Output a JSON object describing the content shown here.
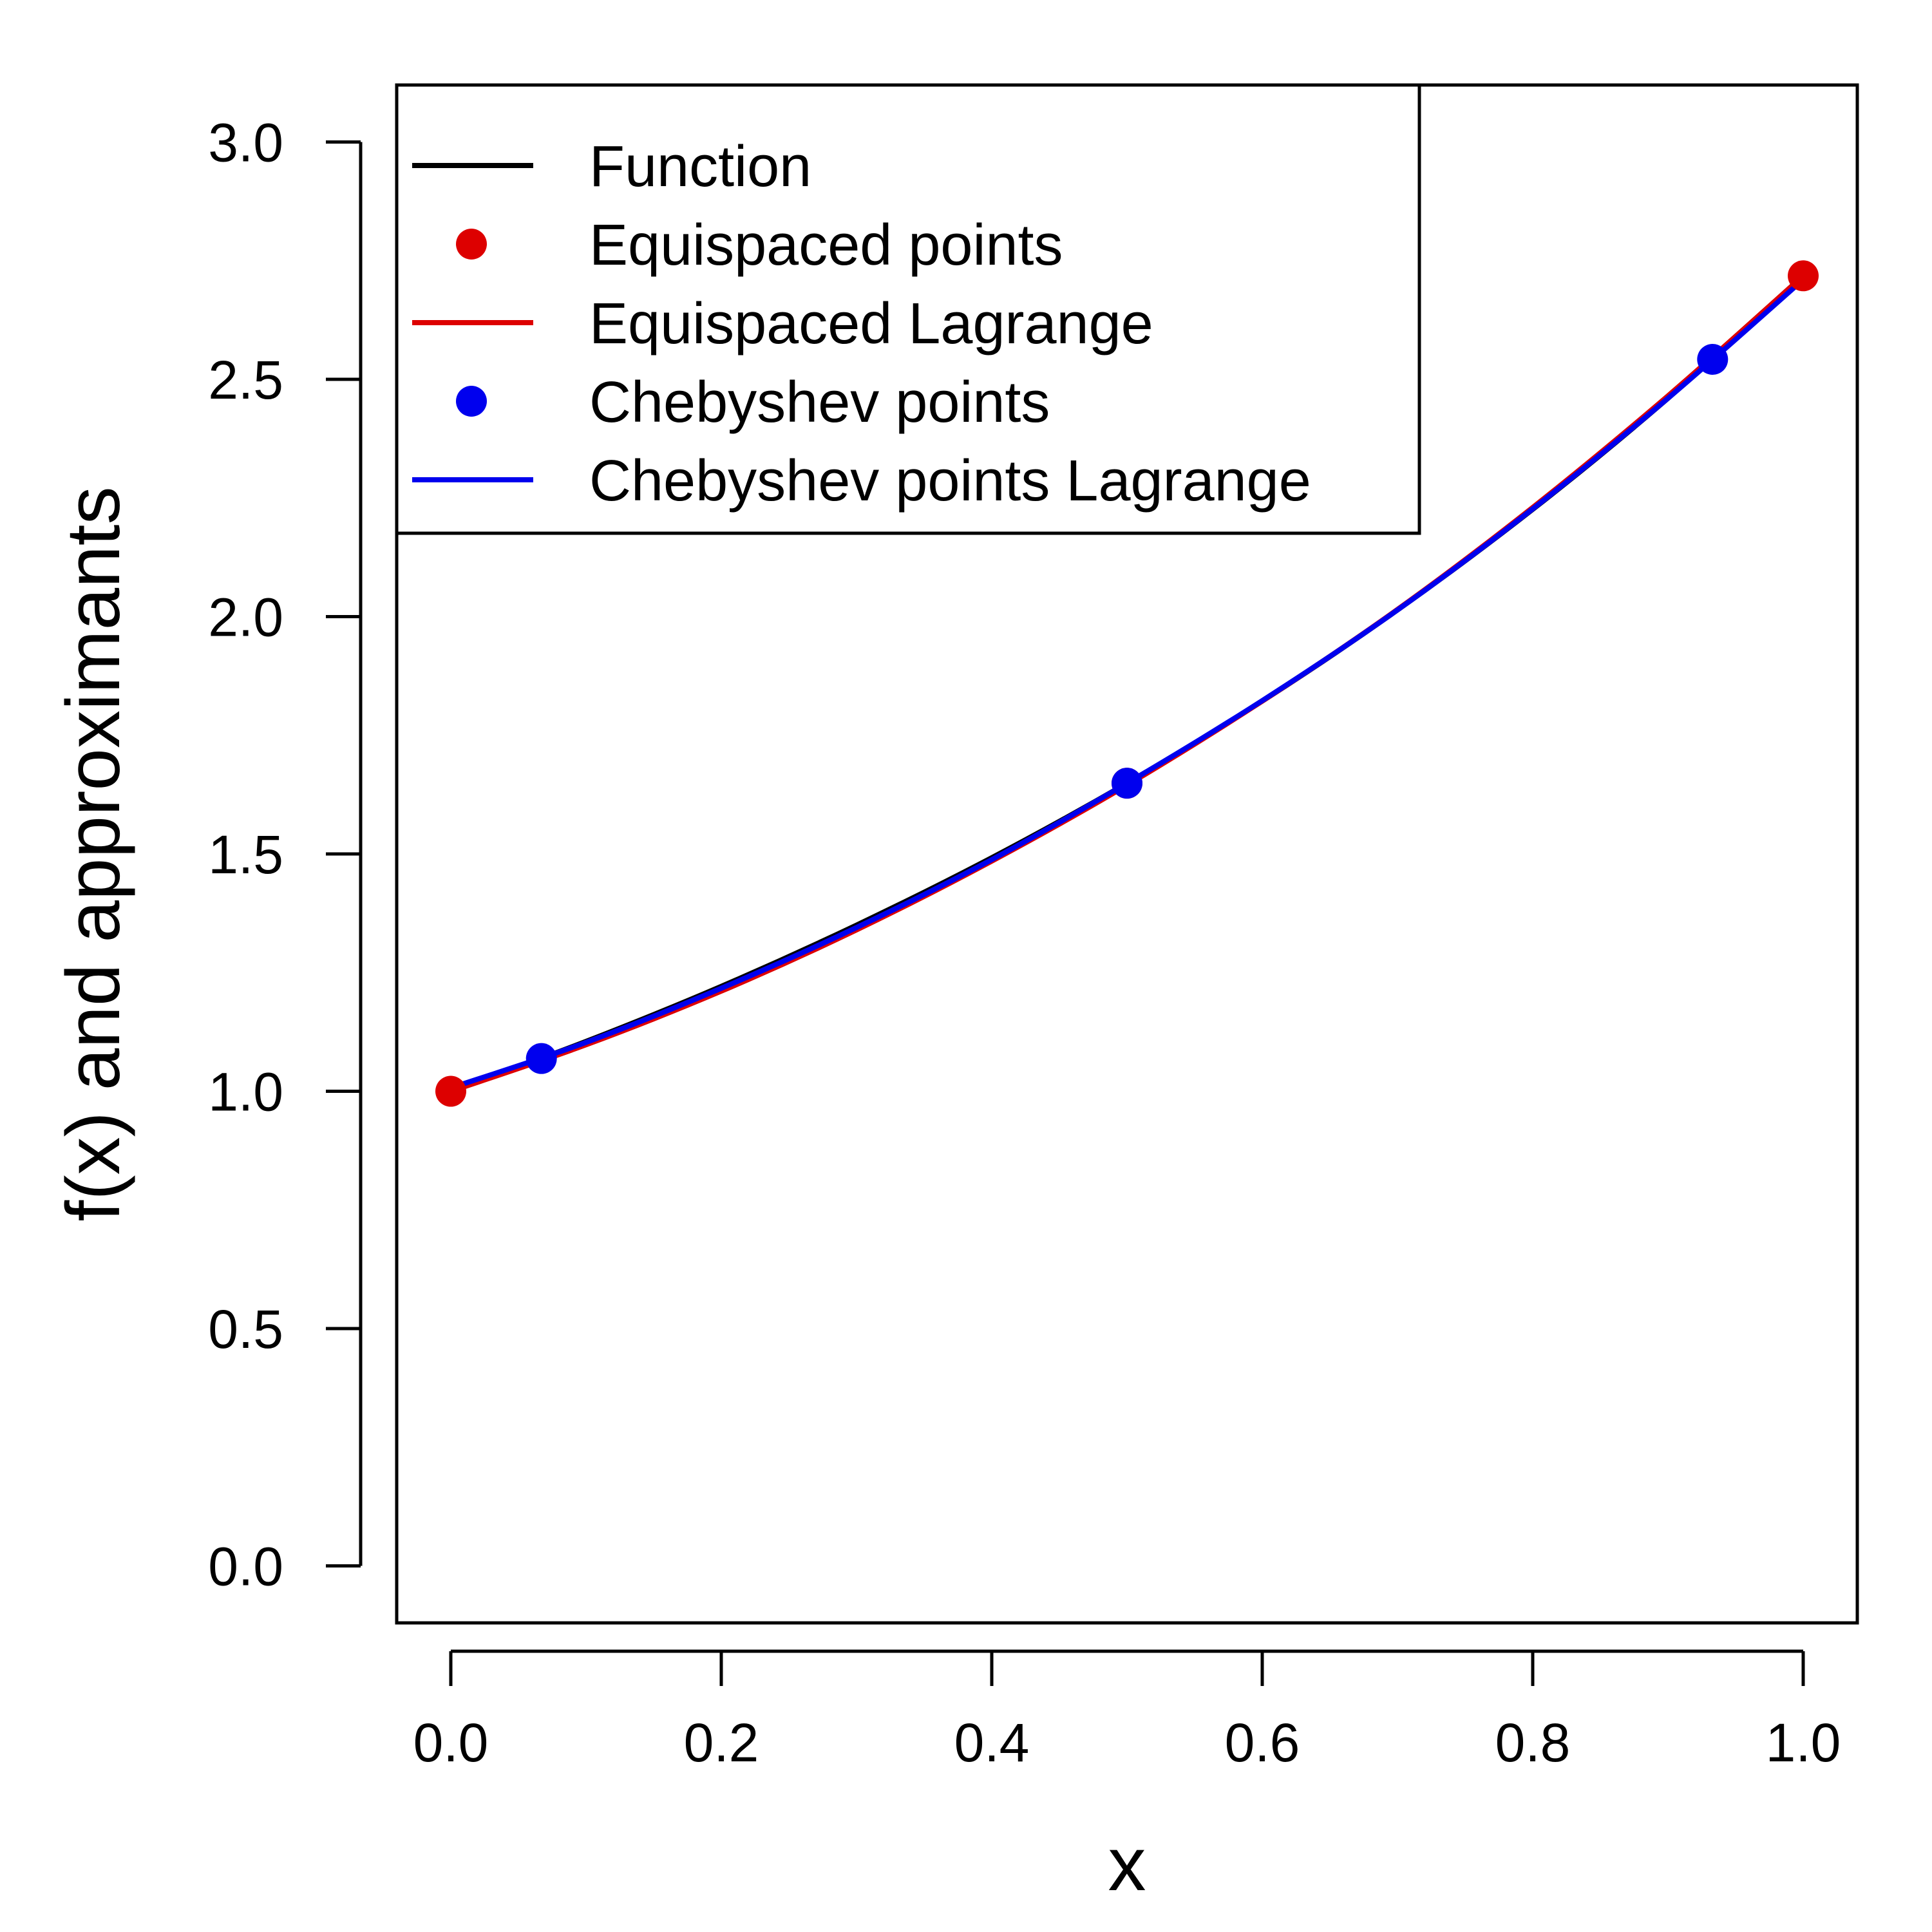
{
  "chart_data": {
    "type": "line",
    "xlabel": "x",
    "ylabel": "f(x) and approximants",
    "xlim": [
      -0.04,
      1.04
    ],
    "ylim": [
      -0.12,
      3.12
    ],
    "x_ticks": [
      "0.0",
      "0.2",
      "0.4",
      "0.6",
      "0.8",
      "1.0"
    ],
    "y_ticks": [
      "0.0",
      "0.5",
      "1.0",
      "1.5",
      "2.0",
      "2.5",
      "3.0"
    ],
    "grid": false,
    "legend_position": "top-left",
    "legend": [
      {
        "label": "Function",
        "kind": "line",
        "color": "#000000"
      },
      {
        "label": "Equispaced points",
        "kind": "point",
        "color": "#dd0000"
      },
      {
        "label": "Equispaced Lagrange",
        "kind": "line",
        "color": "#dd0000"
      },
      {
        "label": "Chebyshev points",
        "kind": "point",
        "color": "#0000ee"
      },
      {
        "label": "Chebyshev points Lagrange",
        "kind": "line",
        "color": "#0000ee"
      }
    ],
    "series": [
      {
        "name": "Function",
        "kind": "line",
        "color": "#000000",
        "x": [
          0.0,
          0.1,
          0.2,
          0.3,
          0.4,
          0.5,
          0.6,
          0.7,
          0.8,
          0.9,
          1.0
        ],
        "y": [
          1.0,
          1.105,
          1.221,
          1.35,
          1.492,
          1.649,
          1.822,
          2.014,
          2.226,
          2.46,
          2.718
        ]
      },
      {
        "name": "Equispaced Lagrange",
        "kind": "line",
        "color": "#dd0000",
        "x": [
          0.0,
          0.1,
          0.2,
          0.3,
          0.4,
          0.5,
          0.6,
          0.7,
          0.8,
          0.9,
          1.0
        ],
        "y": [
          1.0,
          1.098,
          1.211,
          1.34,
          1.485,
          1.645,
          1.822,
          2.015,
          2.23,
          2.465,
          2.718
        ]
      },
      {
        "name": "Chebyshev points Lagrange",
        "kind": "line",
        "color": "#0000ee",
        "x": [
          0.0,
          0.1,
          0.2,
          0.3,
          0.4,
          0.5,
          0.6,
          0.7,
          0.8,
          0.9,
          1.0
        ],
        "y": [
          1.007,
          1.103,
          1.217,
          1.345,
          1.488,
          1.649,
          1.823,
          2.014,
          2.227,
          2.46,
          2.71
        ]
      },
      {
        "name": "Equispaced points",
        "kind": "point",
        "color": "#dd0000",
        "x": [
          0.0,
          0.5,
          1.0
        ],
        "y": [
          1.0,
          1.649,
          2.718
        ]
      },
      {
        "name": "Chebyshev points",
        "kind": "point",
        "color": "#0000ee",
        "x": [
          0.067,
          0.5,
          0.933
        ],
        "y": [
          1.069,
          1.649,
          2.542
        ]
      }
    ]
  }
}
